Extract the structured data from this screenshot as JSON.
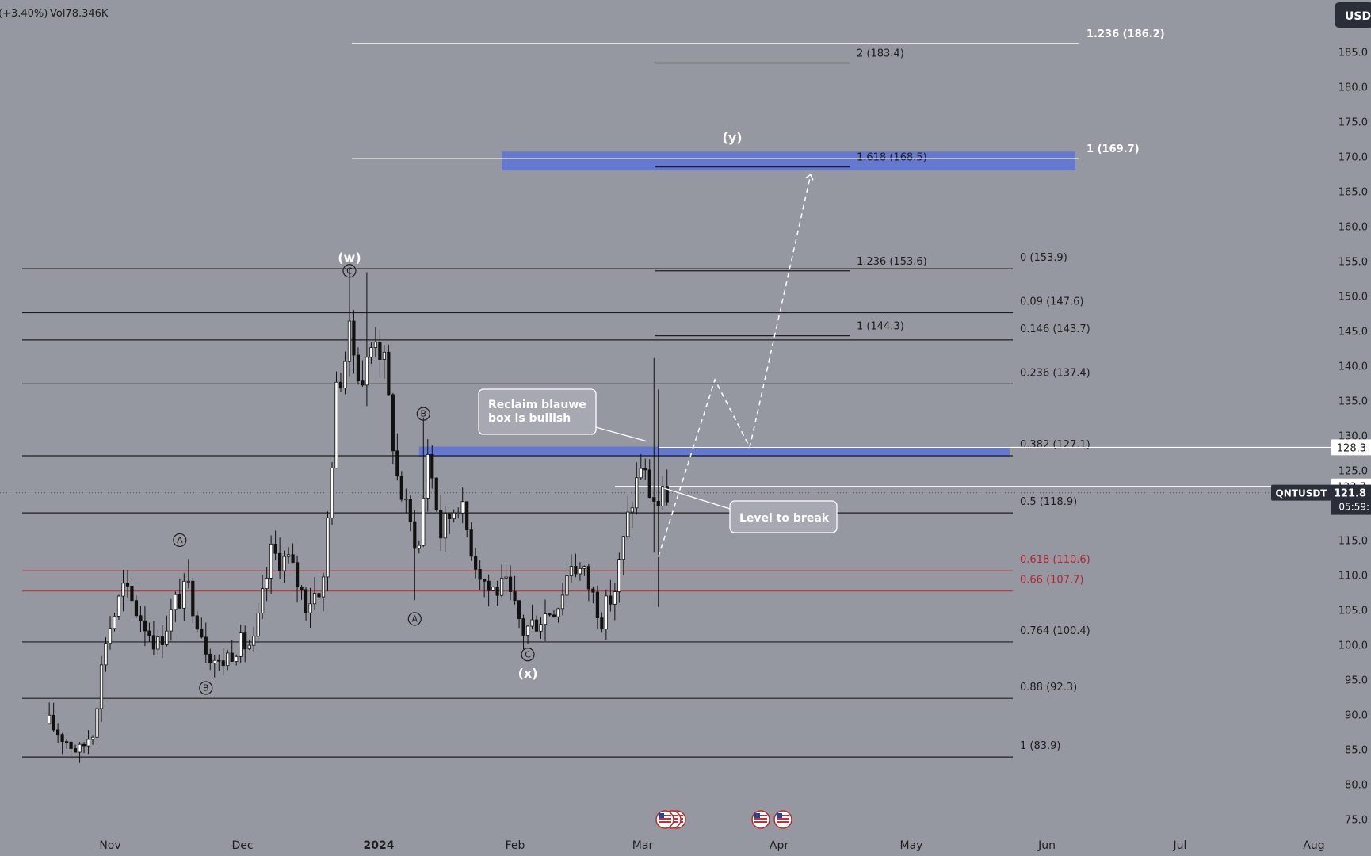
{
  "header": {
    "change": "(+3.40%)",
    "volume": "Vol78.346K"
  },
  "currency_tag": "USDT",
  "symbol_tag": "QNTUSDT",
  "price_tags": {
    "last": "121.8",
    "countdown": "05:59:",
    "level_a": "128.3",
    "level_b": "122.7"
  },
  "colors": {
    "background": "#9598a1",
    "line": "#1e1e1e",
    "white_line": "#ffffff",
    "red_line": "#c0313a",
    "red_text": "#b3262e",
    "blue_box": "#5b72d6",
    "tag_dark": "#2a2e39"
  },
  "chart_data": {
    "type": "candlestick",
    "ylim": [
      72,
      192
    ],
    "y_ticks": [
      "75.0",
      "80.0",
      "85.0",
      "90.0",
      "95.0",
      "100.0",
      "105.0",
      "110.0",
      "115.0",
      "120.0",
      "125.0",
      "130.0",
      "135.0",
      "140.0",
      "145.0",
      "150.0",
      "155.0",
      "160.0",
      "165.0",
      "170.0",
      "175.0",
      "180.0",
      "185.0"
    ],
    "x_labels": [
      "Nov",
      "Dec",
      "2024",
      "Feb",
      "Mar",
      "Apr",
      "May",
      "Jun",
      "Jul",
      "Aug"
    ],
    "fib_levels": [
      {
        "label": "0 (153.9)",
        "value": 153.9,
        "color": "black"
      },
      {
        "label": "0.09 (147.6)",
        "value": 147.6,
        "color": "black"
      },
      {
        "label": "0.146 (143.7)",
        "value": 143.7,
        "color": "black"
      },
      {
        "label": "0.236 (137.4)",
        "value": 137.4,
        "color": "black"
      },
      {
        "label": "0.382 (127.1)",
        "value": 127.1,
        "color": "black"
      },
      {
        "label": "0.5 (118.9)",
        "value": 118.9,
        "color": "black"
      },
      {
        "label": "0.618 (110.6)",
        "value": 110.6,
        "color": "red"
      },
      {
        "label": "0.66 (107.7)",
        "value": 107.7,
        "color": "red"
      },
      {
        "label": "0.764 (100.4)",
        "value": 100.4,
        "color": "black"
      },
      {
        "label": "0.88 (92.3)",
        "value": 92.3,
        "color": "black"
      },
      {
        "label": "1 (83.9)",
        "value": 83.9,
        "color": "black"
      }
    ],
    "ext_levels": [
      {
        "label": "2 (183.4)",
        "value": 183.4
      },
      {
        "label": "1.618 (168.5)",
        "value": 168.5
      },
      {
        "label": "1.236 (153.6)",
        "value": 153.6
      },
      {
        "label": "1 (144.3)",
        "value": 144.3
      }
    ],
    "white_levels": [
      {
        "label": "1.236 (186.2)",
        "value": 186.2
      },
      {
        "label": "1 (169.7)",
        "value": 169.7
      }
    ],
    "wave_labels": [
      {
        "text": "(w)",
        "type": "major",
        "date": "2023-12-26",
        "value": 155.4
      },
      {
        "text": "C",
        "type": "circle",
        "date": "2023-12-26",
        "value": 153.6
      },
      {
        "text": "B",
        "type": "circle",
        "date": "2024-01-12",
        "value": 133.1
      },
      {
        "text": "A",
        "type": "circle",
        "date": "2024-01-10",
        "value": 103.7
      },
      {
        "text": "C",
        "type": "circle",
        "date": "2024-02-05",
        "value": 98.6
      },
      {
        "text": "(x)",
        "type": "major",
        "date": "2024-02-05",
        "value": 95.8
      },
      {
        "text": "A",
        "type": "circle",
        "date": "2023-11-17",
        "value": 115.0
      },
      {
        "text": "B",
        "type": "circle",
        "date": "2023-11-23",
        "value": 93.8
      },
      {
        "text": "(y)",
        "type": "major",
        "date": "2024-03-23",
        "value": 172.6
      }
    ],
    "callouts": [
      {
        "lines": [
          "Reclaim blauwe",
          "box is bullish"
        ]
      },
      {
        "lines": [
          "Level to break"
        ]
      }
    ],
    "ohlc": []
  }
}
